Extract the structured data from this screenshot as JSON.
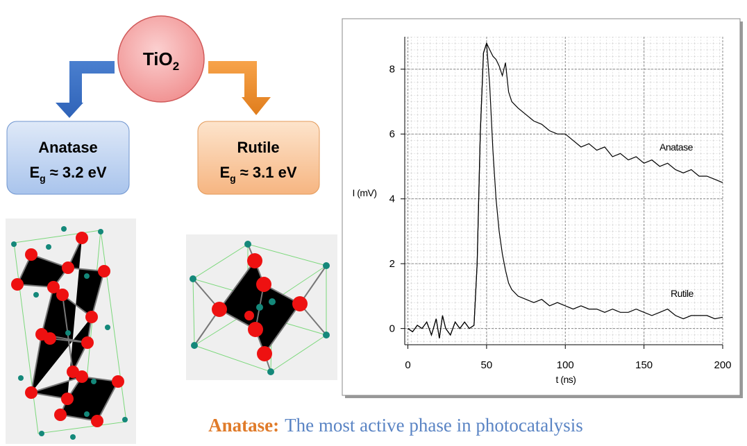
{
  "diagram": {
    "center": {
      "label": "TiO",
      "sub": "2"
    },
    "phases": [
      {
        "name": "Anatase",
        "symbol": "E",
        "sub": "g",
        "value": "≈ 3.2 eV"
      },
      {
        "name": "Rutile",
        "symbol": "E",
        "sub": "g",
        "value": "≈ 3.1 eV"
      }
    ]
  },
  "caption": {
    "highlight": "Anatase:",
    "text": "The most active phase in photocatalysis"
  },
  "chart_data": {
    "type": "line",
    "xlabel": "t (ns)",
    "ylabel": "I (mV)",
    "x": [
      0,
      3,
      6,
      9,
      12,
      15,
      18,
      20,
      22,
      24,
      27,
      30,
      33,
      36,
      39,
      42,
      44,
      46,
      48,
      50,
      52,
      54,
      56,
      58,
      60,
      62,
      64,
      66,
      70,
      75,
      80,
      85,
      90,
      95,
      100,
      105,
      110,
      115,
      120,
      125,
      130,
      135,
      140,
      145,
      150,
      155,
      160,
      165,
      170,
      175,
      180,
      185,
      190,
      195,
      200
    ],
    "series": [
      {
        "name": "Anatase",
        "color": "#000000",
        "values": [
          0.0,
          -0.1,
          0.1,
          0.0,
          0.2,
          -0.2,
          0.3,
          -0.3,
          0.4,
          0.0,
          -0.2,
          0.2,
          0.0,
          0.2,
          0.0,
          0.1,
          2.0,
          6.0,
          8.5,
          8.8,
          8.6,
          8.4,
          8.3,
          8.1,
          7.8,
          8.2,
          7.3,
          7.0,
          6.8,
          6.6,
          6.4,
          6.3,
          6.1,
          6.0,
          6.0,
          5.8,
          5.6,
          5.7,
          5.5,
          5.6,
          5.3,
          5.4,
          5.2,
          5.3,
          5.1,
          5.2,
          5.0,
          5.1,
          4.9,
          4.8,
          4.9,
          4.7,
          4.7,
          4.6,
          4.5
        ]
      },
      {
        "name": "Rutile",
        "color": "#000000",
        "values": [
          0.0,
          -0.1,
          0.1,
          0.0,
          0.2,
          -0.2,
          0.3,
          -0.3,
          0.4,
          0.0,
          -0.2,
          0.2,
          0.0,
          0.2,
          0.0,
          0.1,
          2.0,
          6.0,
          8.5,
          8.8,
          7.5,
          5.5,
          4.0,
          3.0,
          2.3,
          1.8,
          1.4,
          1.2,
          1.0,
          0.9,
          0.8,
          0.9,
          0.7,
          0.8,
          0.7,
          0.6,
          0.7,
          0.6,
          0.6,
          0.5,
          0.6,
          0.5,
          0.5,
          0.6,
          0.5,
          0.4,
          0.5,
          0.6,
          0.4,
          0.3,
          0.4,
          0.4,
          0.4,
          0.3,
          0.35
        ]
      }
    ],
    "xlim": [
      -2,
      200
    ],
    "ylim": [
      -0.5,
      9.0
    ],
    "xticks": [
      0,
      50,
      100,
      150,
      200
    ],
    "yticks": [
      0,
      2,
      4,
      6,
      8
    ],
    "grid": true
  }
}
